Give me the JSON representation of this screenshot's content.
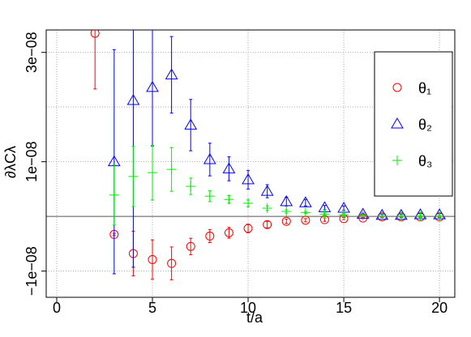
{
  "chart_data": {
    "type": "errorbar-scatter",
    "xlabel": "t/a",
    "ylabel": "∂λCλ",
    "xlim": [
      -0.55,
      20.8
    ],
    "ylim": [
      -1.48e-08,
      3.41e-08
    ],
    "xticks": [
      0,
      5,
      10,
      15,
      20
    ],
    "yticks": [
      {
        "value": -1e-08,
        "label": "−1e−08"
      },
      {
        "value": 1e-08,
        "label": "1e−08"
      },
      {
        "value": 3e-08,
        "label": "3e−08"
      }
    ],
    "ygrid": [
      -1e-08,
      1e-08,
      2e-08,
      3e-08
    ],
    "hline": 0,
    "grid": true,
    "legend": "upper right",
    "series": [
      {
        "name": "θ₁",
        "color": "#ff0000",
        "marker": "circle",
        "x": [
          2,
          3,
          4,
          5,
          6,
          7,
          8,
          9,
          10,
          11,
          12,
          13,
          14,
          15,
          16,
          17,
          18,
          19,
          20
        ],
        "values": [
          3.35e-08,
          -3.3e-09,
          -6.8e-09,
          -7.9e-09,
          -8.6e-09,
          -5.5e-09,
          -3.6e-09,
          -3e-09,
          -2.2e-09,
          -1.5e-09,
          -9e-10,
          -7e-10,
          -6e-10,
          -4e-10,
          -3e-10,
          -1e-10,
          -1e-10,
          -1e-10,
          -1e-10
        ],
        "errors": [
          1.02e-08,
          2e-10,
          4.1e-09,
          3.6e-09,
          3e-09,
          1.5e-09,
          1.2e-09,
          1e-09,
          8e-10,
          6e-10,
          4e-10,
          3e-10,
          3e-10,
          2e-10,
          1e-10,
          1e-10,
          1e-10,
          1e-10,
          1e-10
        ]
      },
      {
        "name": "θ₂",
        "color": "#0000ff",
        "marker": "triangle",
        "x": [
          3,
          4,
          5,
          6,
          7,
          8,
          9,
          10,
          11,
          12,
          13,
          14,
          15,
          16,
          17,
          18,
          19,
          20
        ],
        "values": [
          1e-08,
          2.12e-08,
          2.36e-08,
          2.59e-08,
          1.67e-08,
          1.04e-08,
          8.7e-09,
          6.7e-09,
          4.6e-09,
          2.7e-09,
          2.5e-09,
          1.6e-09,
          1.5e-09,
          4e-10,
          2e-10,
          2e-10,
          3e-10,
          3e-10
        ],
        "errors": [
          2.05e-08,
          3.05e-08,
          1.07e-08,
          7e-09,
          4.7e-09,
          3e-09,
          2.2e-09,
          1.7e-09,
          1.2e-09,
          8e-10,
          6e-10,
          4e-10,
          4e-10,
          2e-10,
          2e-10,
          2e-10,
          2e-10,
          2e-10
        ]
      },
      {
        "name": "θ₃",
        "color": "#00ee00",
        "marker": "plus",
        "x": [
          3,
          4,
          5,
          6,
          7,
          8,
          9,
          10,
          11,
          12,
          13,
          14,
          15,
          16,
          17,
          18,
          19,
          20
        ],
        "values": [
          3.9e-09,
          7.3e-09,
          8e-09,
          8.6e-09,
          5.5e-09,
          3.7e-09,
          3.1e-09,
          2.4e-09,
          1.5e-09,
          9e-10,
          7e-10,
          4e-10,
          3e-10,
          1.5e-10,
          5e-11,
          5e-11,
          5e-11,
          5e-11
        ],
        "errors": [
          5.5e-09,
          5.5e-09,
          5e-09,
          4e-09,
          1.5e-09,
          1e-09,
          7e-10,
          6e-10,
          4e-10,
          3e-10,
          2e-10,
          2e-10,
          2e-10,
          1e-10,
          1e-10,
          1e-10,
          1e-10,
          1e-10
        ]
      }
    ]
  }
}
